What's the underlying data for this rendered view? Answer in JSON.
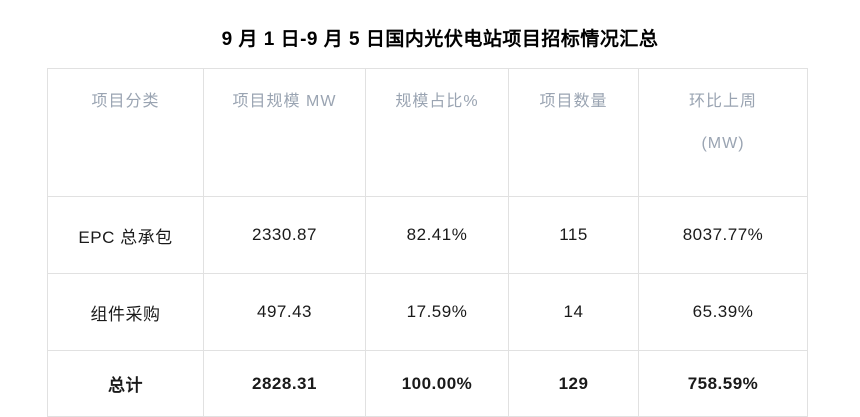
{
  "title": "9 月 1 日-9 月 5 日国内光伏电站项目招标情况汇总",
  "table": {
    "headers": [
      "项目分类",
      "项目规模 MW",
      "规模占比%",
      "项目数量",
      "环比上周"
    ],
    "header_unit_line": "(MW)",
    "rows": [
      {
        "cells": [
          "EPC 总承包",
          "2330.87",
          "82.41%",
          "115",
          "8037.77%"
        ]
      },
      {
        "cells": [
          "组件采购",
          "497.43",
          "17.59%",
          "14",
          "65.39%"
        ]
      },
      {
        "cells": [
          "总计",
          "2828.31",
          "100.00%",
          "129",
          "758.59%"
        ]
      }
    ]
  },
  "colors": {
    "header_text": "#9aa4b2",
    "body_text": "#1a1a1a",
    "border": "#e1e1e1",
    "background": "#ffffff"
  }
}
